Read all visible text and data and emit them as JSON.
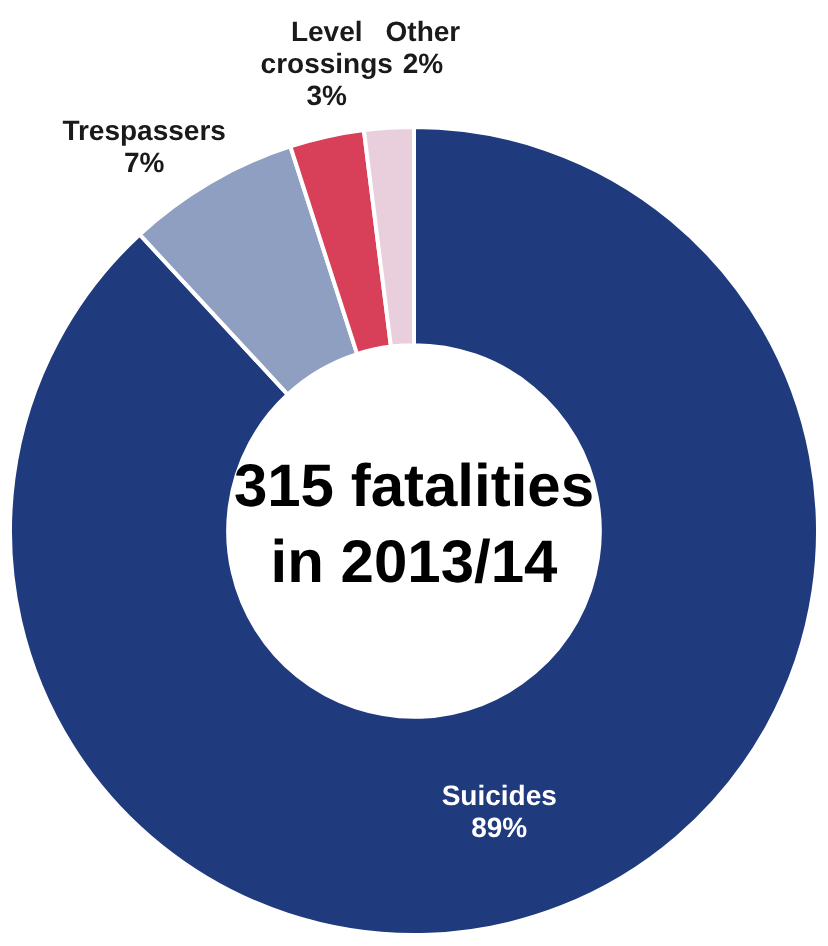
{
  "chart_data": {
    "type": "donut",
    "title": "315 fatalities in 2013/14",
    "categories": [
      "Suicides",
      "Trespassers",
      "Level crossings",
      "Other"
    ],
    "values": [
      89,
      7,
      3,
      2
    ],
    "colors": [
      "#1f3a7d",
      "#8e9fc1",
      "#d8405a",
      "#e8cfdb"
    ],
    "value_labels": [
      "89%",
      "7%",
      "3%",
      "2%"
    ],
    "legend": false
  }
}
